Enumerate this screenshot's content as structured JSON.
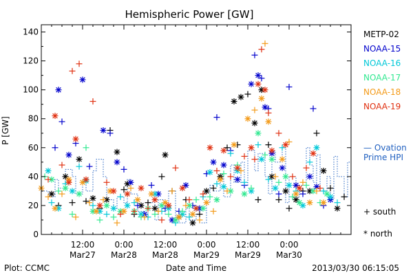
{
  "chart_data": {
    "type": "scatter",
    "title": "Hemispheric Power [GW]",
    "xlabel": "Date and Time",
    "ylabel": "P [GW]",
    "ylim": [
      0,
      145
    ],
    "yticks": [
      0,
      20,
      40,
      60,
      80,
      100,
      120,
      140
    ],
    "xlim_hours": [
      0,
      90
    ],
    "xticks": [
      {
        "h": 12,
        "time": "12:00",
        "date": "Mar27"
      },
      {
        "h": 24,
        "time": "0:00",
        "date": "Mar28"
      },
      {
        "h": 36,
        "time": "12:00",
        "date": "Mar28"
      },
      {
        "h": 48,
        "time": "0:00",
        "date": "Mar29"
      },
      {
        "h": 60,
        "time": "12:00",
        "date": "Mar29"
      },
      {
        "h": 72,
        "time": "0:00",
        "date": "Mar30"
      }
    ],
    "legend": [
      {
        "name": "METP-02",
        "color": "#000000"
      },
      {
        "name": "NOAA-15",
        "color": "#0000cc"
      },
      {
        "name": "NOAA-16",
        "color": "#00c8d8"
      },
      {
        "name": "NOAA-17",
        "color": "#30e890"
      },
      {
        "name": "NOAA-18",
        "color": "#f39a18"
      },
      {
        "name": "NOAA-19",
        "color": "#e03010"
      }
    ],
    "model_legend": {
      "line1": "— Ovation",
      "line2": "Prime HPI",
      "color": "#2060c0"
    },
    "marker_legend": {
      "south": "+ south",
      "north": "* north"
    },
    "footer_left": "Plot: CCMC",
    "footer_right": "2013/03/30 06:15:05",
    "ovation": [
      [
        0,
        30
      ],
      [
        2,
        26
      ],
      [
        4,
        38
      ],
      [
        5,
        32
      ],
      [
        7,
        45
      ],
      [
        9,
        40
      ],
      [
        10,
        28
      ],
      [
        12,
        38
      ],
      [
        13,
        30
      ],
      [
        15,
        44
      ],
      [
        16,
        52
      ],
      [
        18,
        40
      ],
      [
        19,
        24
      ],
      [
        21,
        18
      ],
      [
        22,
        26
      ],
      [
        24,
        22
      ],
      [
        25,
        38
      ],
      [
        26,
        28
      ],
      [
        28,
        16
      ],
      [
        30,
        12
      ],
      [
        31,
        22
      ],
      [
        33,
        10
      ],
      [
        34,
        24
      ],
      [
        36,
        14
      ],
      [
        37,
        30
      ],
      [
        39,
        12
      ],
      [
        40,
        8
      ],
      [
        42,
        18
      ],
      [
        43,
        10
      ],
      [
        45,
        14
      ],
      [
        46,
        8
      ],
      [
        48,
        22
      ],
      [
        49,
        34
      ],
      [
        50,
        30
      ],
      [
        52,
        40
      ],
      [
        53,
        26
      ],
      [
        55,
        48
      ],
      [
        56,
        36
      ],
      [
        58,
        50
      ],
      [
        59,
        34
      ],
      [
        60,
        58
      ],
      [
        62,
        44
      ],
      [
        63,
        56
      ],
      [
        65,
        40
      ],
      [
        66,
        28
      ],
      [
        67,
        58
      ],
      [
        68,
        50
      ],
      [
        70,
        60
      ],
      [
        71,
        22
      ],
      [
        72,
        40
      ],
      [
        74,
        26
      ],
      [
        75,
        34
      ],
      [
        77,
        60
      ],
      [
        78,
        48
      ],
      [
        79,
        36
      ],
      [
        80,
        55
      ],
      [
        81,
        30
      ],
      [
        83,
        40
      ],
      [
        84,
        24
      ],
      [
        85,
        54
      ],
      [
        86,
        40
      ],
      [
        88,
        26
      ],
      [
        89,
        50
      ],
      [
        90,
        24
      ]
    ],
    "series": [
      {
        "name": "METP-02",
        "points": [
          [
            3,
            28
          ],
          [
            5,
            20
          ],
          [
            7,
            40
          ],
          [
            9,
            22
          ],
          [
            11,
            52
          ],
          [
            13,
            23
          ],
          [
            15,
            25
          ],
          [
            17,
            18
          ],
          [
            19,
            24
          ],
          [
            20,
            72
          ],
          [
            22,
            57
          ],
          [
            24,
            31
          ],
          [
            25,
            35
          ],
          [
            27,
            14
          ],
          [
            29,
            20
          ],
          [
            31,
            22
          ],
          [
            33,
            18
          ],
          [
            35,
            40
          ],
          [
            36,
            55
          ],
          [
            38,
            30
          ],
          [
            40,
            12
          ],
          [
            42,
            24
          ],
          [
            44,
            8
          ],
          [
            46,
            14
          ],
          [
            48,
            30
          ],
          [
            50,
            32
          ],
          [
            52,
            40
          ],
          [
            54,
            60
          ],
          [
            56,
            92
          ],
          [
            57,
            62
          ],
          [
            58,
            95
          ],
          [
            60,
            97
          ],
          [
            62,
            77
          ],
          [
            63,
            24
          ],
          [
            64,
            100
          ],
          [
            66,
            62
          ],
          [
            67,
            40
          ],
          [
            69,
            24
          ],
          [
            71,
            30
          ],
          [
            72,
            18
          ],
          [
            74,
            24
          ],
          [
            76,
            30
          ],
          [
            78,
            30
          ],
          [
            80,
            70
          ],
          [
            82,
            44
          ],
          [
            84,
            32
          ],
          [
            86,
            18
          ],
          [
            88,
            26
          ]
        ]
      },
      {
        "name": "NOAA-15",
        "points": [
          [
            4,
            60
          ],
          [
            5,
            100
          ],
          [
            6,
            78
          ],
          [
            8,
            55
          ],
          [
            10,
            63
          ],
          [
            12,
            107
          ],
          [
            14,
            47
          ],
          [
            18,
            72
          ],
          [
            20,
            70
          ],
          [
            22,
            50
          ],
          [
            24,
            45
          ],
          [
            26,
            36
          ],
          [
            28,
            20
          ],
          [
            30,
            14
          ],
          [
            32,
            34
          ],
          [
            34,
            28
          ],
          [
            36,
            18
          ],
          [
            38,
            10
          ],
          [
            40,
            16
          ],
          [
            42,
            34
          ],
          [
            44,
            20
          ],
          [
            46,
            18
          ],
          [
            48,
            42
          ],
          [
            50,
            50
          ],
          [
            51,
            81
          ],
          [
            53,
            48
          ],
          [
            55,
            58
          ],
          [
            57,
            38
          ],
          [
            59,
            34
          ],
          [
            61,
            104
          ],
          [
            62,
            124
          ],
          [
            63,
            110
          ],
          [
            64,
            108
          ],
          [
            65,
            88
          ],
          [
            66,
            87
          ],
          [
            67,
            56
          ],
          [
            69,
            28
          ],
          [
            70,
            46
          ],
          [
            72,
            102
          ],
          [
            74,
            34
          ],
          [
            76,
            28
          ],
          [
            78,
            40
          ],
          [
            79,
            87
          ],
          [
            80,
            33
          ],
          [
            82,
            20
          ],
          [
            84,
            24
          ]
        ]
      },
      {
        "name": "NOAA-16",
        "points": [
          [
            2,
            44
          ],
          [
            3,
            22
          ],
          [
            5,
            18
          ],
          [
            7,
            35
          ],
          [
            9,
            30
          ],
          [
            11,
            47
          ],
          [
            13,
            37
          ],
          [
            15,
            20
          ],
          [
            17,
            16
          ],
          [
            19,
            14
          ],
          [
            21,
            18
          ],
          [
            23,
            26
          ],
          [
            25,
            20
          ],
          [
            27,
            22
          ],
          [
            29,
            14
          ],
          [
            31,
            12
          ],
          [
            33,
            28
          ],
          [
            35,
            16
          ],
          [
            37,
            18
          ],
          [
            39,
            8
          ],
          [
            41,
            14
          ],
          [
            43,
            12
          ],
          [
            45,
            18
          ],
          [
            47,
            26
          ],
          [
            49,
            43
          ],
          [
            51,
            35
          ],
          [
            53,
            33
          ],
          [
            55,
            56
          ],
          [
            57,
            44
          ],
          [
            59,
            36
          ],
          [
            61,
            30
          ],
          [
            63,
            62
          ],
          [
            64,
            52
          ],
          [
            66,
            38
          ],
          [
            68,
            32
          ],
          [
            70,
            60
          ],
          [
            72,
            34
          ],
          [
            74,
            30
          ],
          [
            76,
            20
          ],
          [
            78,
            50
          ],
          [
            80,
            60
          ],
          [
            82,
            30
          ],
          [
            84,
            26
          ],
          [
            86,
            22
          ]
        ]
      },
      {
        "name": "NOAA-17",
        "points": [
          [
            1,
            40
          ],
          [
            3,
            38
          ],
          [
            5,
            30
          ],
          [
            7,
            32
          ],
          [
            9,
            14
          ],
          [
            11,
            28
          ],
          [
            13,
            60
          ],
          [
            15,
            16
          ],
          [
            17,
            10
          ],
          [
            19,
            20
          ],
          [
            21,
            12
          ],
          [
            23,
            16
          ],
          [
            25,
            28
          ],
          [
            27,
            16
          ],
          [
            29,
            12
          ],
          [
            31,
            18
          ],
          [
            33,
            14
          ],
          [
            35,
            20
          ],
          [
            37,
            14
          ],
          [
            39,
            10
          ],
          [
            41,
            16
          ],
          [
            43,
            20
          ],
          [
            45,
            24
          ],
          [
            47,
            18
          ],
          [
            49,
            26
          ],
          [
            51,
            24
          ],
          [
            53,
            42
          ],
          [
            55,
            30
          ],
          [
            57,
            48
          ],
          [
            59,
            28
          ],
          [
            61,
            32
          ],
          [
            63,
            70
          ],
          [
            65,
            55
          ],
          [
            67,
            52
          ],
          [
            69,
            36
          ],
          [
            71,
            40
          ],
          [
            73,
            26
          ],
          [
            75,
            22
          ],
          [
            77,
            34
          ],
          [
            79,
            30
          ],
          [
            81,
            22
          ],
          [
            83,
            28
          ]
        ]
      },
      {
        "name": "NOAA-18",
        "points": [
          [
            0,
            32
          ],
          [
            2,
            26
          ],
          [
            4,
            18
          ],
          [
            6,
            28
          ],
          [
            8,
            38
          ],
          [
            10,
            12
          ],
          [
            12,
            36
          ],
          [
            14,
            22
          ],
          [
            16,
            16
          ],
          [
            18,
            24
          ],
          [
            20,
            30
          ],
          [
            22,
            8
          ],
          [
            24,
            16
          ],
          [
            26,
            32
          ],
          [
            28,
            24
          ],
          [
            30,
            12
          ],
          [
            32,
            28
          ],
          [
            34,
            16
          ],
          [
            36,
            22
          ],
          [
            38,
            30
          ],
          [
            40,
            12
          ],
          [
            42,
            20
          ],
          [
            44,
            14
          ],
          [
            46,
            10
          ],
          [
            48,
            22
          ],
          [
            50,
            16
          ],
          [
            52,
            38
          ],
          [
            54,
            30
          ],
          [
            56,
            62
          ],
          [
            58,
            44
          ],
          [
            60,
            80
          ],
          [
            62,
            86
          ],
          [
            64,
            94
          ],
          [
            65,
            132
          ],
          [
            66,
            78
          ],
          [
            68,
            40
          ],
          [
            70,
            52
          ],
          [
            72,
            64
          ],
          [
            74,
            28
          ],
          [
            76,
            36
          ],
          [
            78,
            22
          ],
          [
            80,
            30
          ],
          [
            82,
            22
          ]
        ]
      },
      {
        "name": "NOAA-19",
        "points": [
          [
            2,
            38
          ],
          [
            4,
            82
          ],
          [
            6,
            48
          ],
          [
            8,
            36
          ],
          [
            9,
            113
          ],
          [
            10,
            66
          ],
          [
            11,
            118
          ],
          [
            13,
            38
          ],
          [
            15,
            92
          ],
          [
            17,
            20
          ],
          [
            19,
            36
          ],
          [
            21,
            30
          ],
          [
            23,
            14
          ],
          [
            25,
            28
          ],
          [
            27,
            16
          ],
          [
            29,
            32
          ],
          [
            31,
            18
          ],
          [
            33,
            24
          ],
          [
            35,
            10
          ],
          [
            37,
            20
          ],
          [
            39,
            46
          ],
          [
            41,
            32
          ],
          [
            43,
            24
          ],
          [
            45,
            18
          ],
          [
            47,
            28
          ],
          [
            49,
            60
          ],
          [
            51,
            44
          ],
          [
            53,
            58
          ],
          [
            55,
            40
          ],
          [
            57,
            46
          ],
          [
            59,
            54
          ],
          [
            61,
            60
          ],
          [
            62,
            52
          ],
          [
            63,
            104
          ],
          [
            64,
            128
          ],
          [
            65,
            100
          ],
          [
            66,
            84
          ],
          [
            67,
            58
          ],
          [
            69,
            70
          ],
          [
            71,
            62
          ],
          [
            73,
            40
          ],
          [
            75,
            32
          ],
          [
            77,
            46
          ],
          [
            79,
            56
          ],
          [
            81,
            32
          ]
        ]
      }
    ]
  }
}
